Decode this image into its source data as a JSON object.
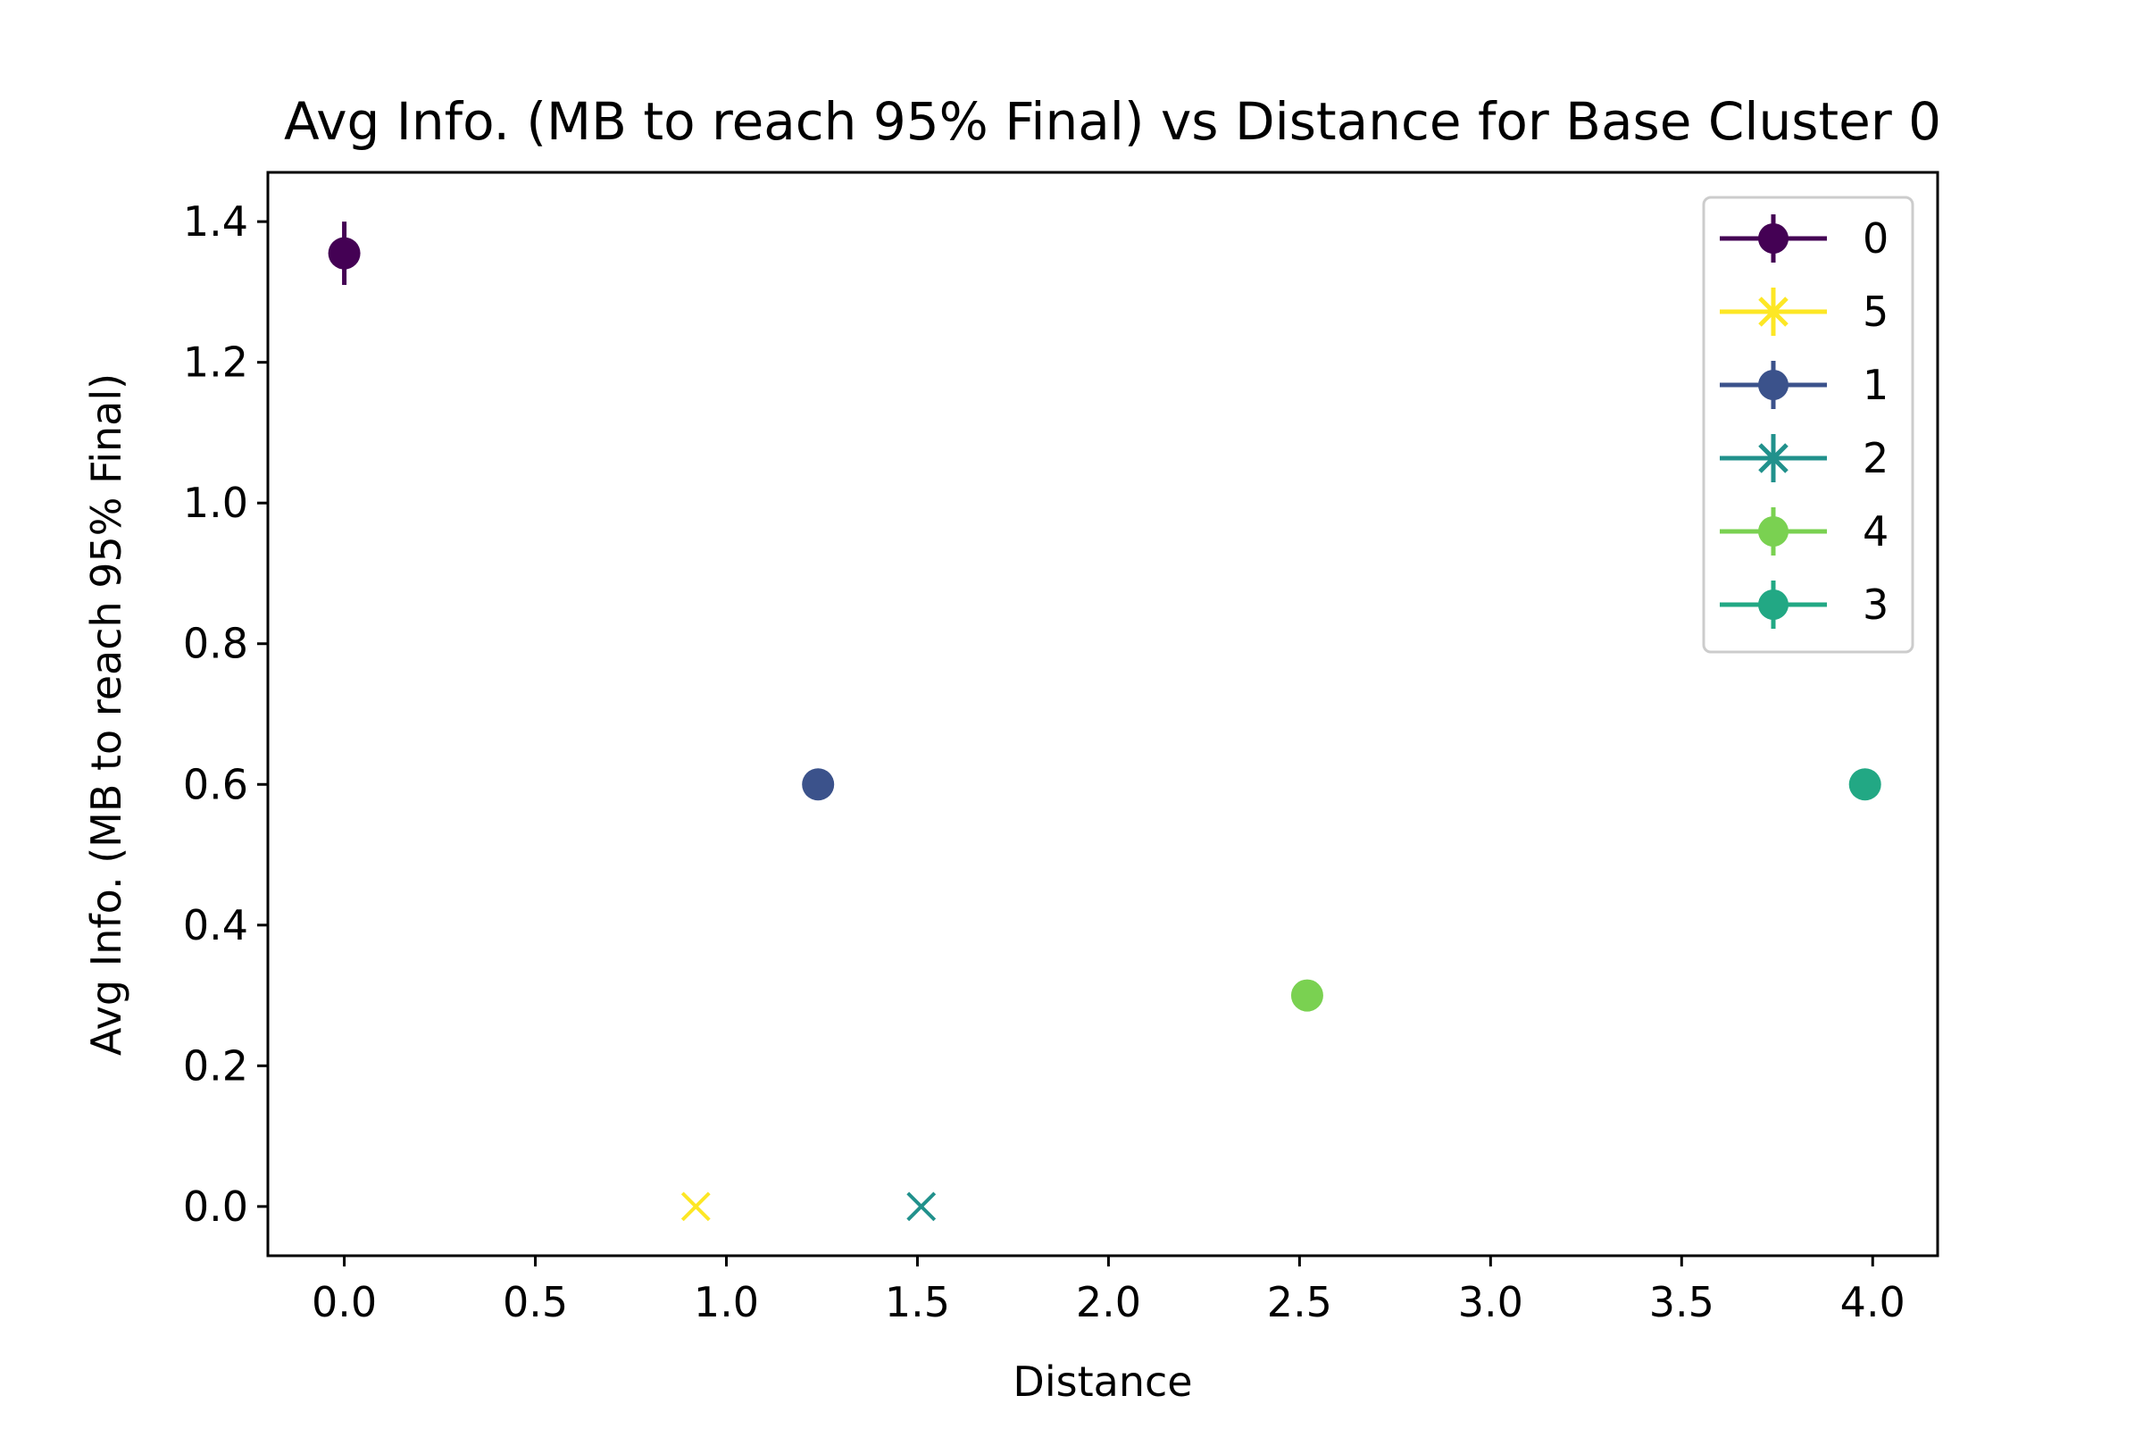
{
  "chart_data": {
    "type": "scatter",
    "title": "Avg Info. (MB to reach 95% Final) vs Distance for Base Cluster 0",
    "xlabel": "Distance",
    "ylabel": "Avg Info. (MB to reach 95% Final)",
    "xlim": [
      -0.2,
      4.17
    ],
    "ylim": [
      -0.07,
      1.47
    ],
    "xticks": [
      0.0,
      0.5,
      1.0,
      1.5,
      2.0,
      2.5,
      3.0,
      3.5,
      4.0
    ],
    "xtick_labels": [
      "0.0",
      "0.5",
      "1.0",
      "1.5",
      "2.0",
      "2.5",
      "3.0",
      "3.5",
      "4.0"
    ],
    "yticks": [
      0.0,
      0.2,
      0.4,
      0.6,
      0.8,
      1.0,
      1.2,
      1.4
    ],
    "ytick_labels": [
      "0.0",
      "0.2",
      "0.4",
      "0.6",
      "0.8",
      "1.0",
      "1.2",
      "1.4"
    ],
    "grid": false,
    "legend_position": "top-right",
    "series": [
      {
        "name": "0",
        "color": "#440154",
        "marker": "circle",
        "x": 0.0,
        "y": 1.355,
        "yerr": 0.045
      },
      {
        "name": "5",
        "color": "#fde725",
        "marker": "x",
        "x": 0.92,
        "y": 0.0,
        "yerr": 0
      },
      {
        "name": "1",
        "color": "#3b528b",
        "marker": "circle",
        "x": 1.24,
        "y": 0.6,
        "yerr": 0
      },
      {
        "name": "2",
        "color": "#21918c",
        "marker": "x",
        "x": 1.51,
        "y": 0.0,
        "yerr": 0
      },
      {
        "name": "4",
        "color": "#7ad151",
        "marker": "circle",
        "x": 2.52,
        "y": 0.3,
        "yerr": 0
      },
      {
        "name": "3",
        "color": "#22a884",
        "marker": "circle",
        "x": 3.98,
        "y": 0.6,
        "yerr": 0
      }
    ]
  }
}
